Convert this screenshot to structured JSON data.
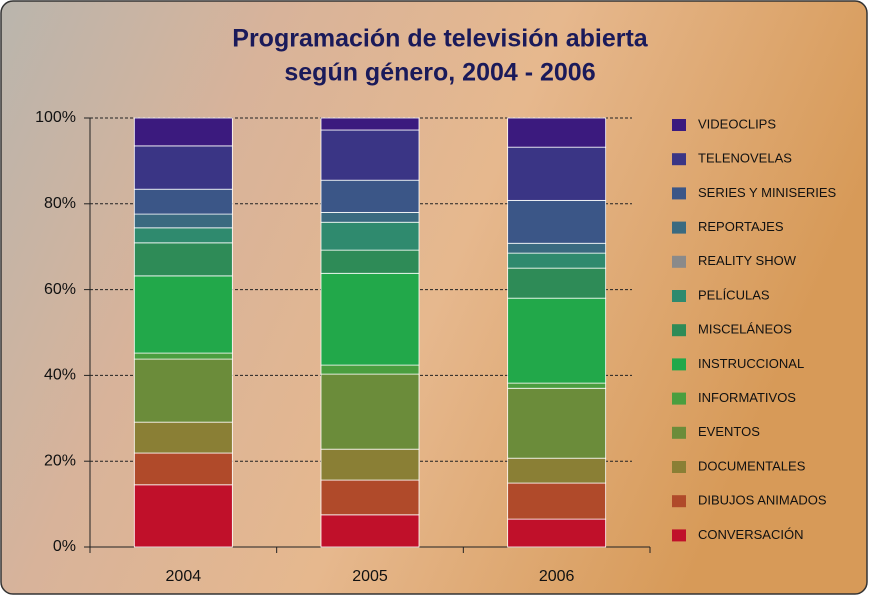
{
  "chart_data": {
    "type": "stacked_bar",
    "title": [
      "Programación de televisión abierta",
      "según género, 2004 - 2006"
    ],
    "categories": [
      "2004",
      "2005",
      "2006"
    ],
    "ylim": [
      0,
      100
    ],
    "yticks": [
      {
        "value": 0,
        "label": "0%"
      },
      {
        "value": 20,
        "label": "20%"
      },
      {
        "value": 40,
        "label": "40%"
      },
      {
        "value": 60,
        "label": "60%"
      },
      {
        "value": 80,
        "label": "80%"
      },
      {
        "value": 100,
        "label": "100%"
      }
    ],
    "grid": true,
    "legend": "right",
    "series": [
      {
        "name": "CONVERSACIÓN",
        "color": "#c0102a",
        "values": [
          14.5,
          7.5,
          6.5
        ]
      },
      {
        "name": "DIBUJOS ANIMADOS",
        "color": "#b04a2a",
        "values": [
          7.4,
          8.1,
          8.4
        ]
      },
      {
        "name": "DOCUMENTALES",
        "color": "#8a7f35",
        "values": [
          7.2,
          7.2,
          5.8
        ]
      },
      {
        "name": "EVENTOS",
        "color": "#6b8c3a",
        "values": [
          14.7,
          17.5,
          16.3
        ]
      },
      {
        "name": "INFORMATIVOS",
        "color": "#4a9e3f",
        "values": [
          1.4,
          2.1,
          1.2
        ]
      },
      {
        "name": "INSTRUCCIONAL",
        "color": "#22a84a",
        "values": [
          18.0,
          21.4,
          19.8
        ]
      },
      {
        "name": "MISCELÁNEOS",
        "color": "#2e8b57",
        "values": [
          7.7,
          5.4,
          7.0
        ]
      },
      {
        "name": "PELÍCULAS",
        "color": "#2f8a6e",
        "values": [
          3.5,
          6.5,
          3.5
        ]
      },
      {
        "name": "REALITY SHOW",
        "color": "#8a8a8a",
        "values": [
          0,
          0,
          0
        ]
      },
      {
        "name": "REPORTAJES",
        "color": "#3a6a80",
        "values": [
          3.2,
          2.3,
          2.3
        ]
      },
      {
        "name": "SERIES Y MINISERIES",
        "color": "#3b5687",
        "values": [
          5.8,
          7.5,
          10.0
        ]
      },
      {
        "name": "TELENOVELAS",
        "color": "#3a3585",
        "values": [
          10.1,
          11.7,
          12.4
        ]
      },
      {
        "name": "VIDEOCLIPS",
        "color": "#3b1a7e",
        "values": [
          6.5,
          2.8,
          6.8
        ]
      }
    ]
  }
}
